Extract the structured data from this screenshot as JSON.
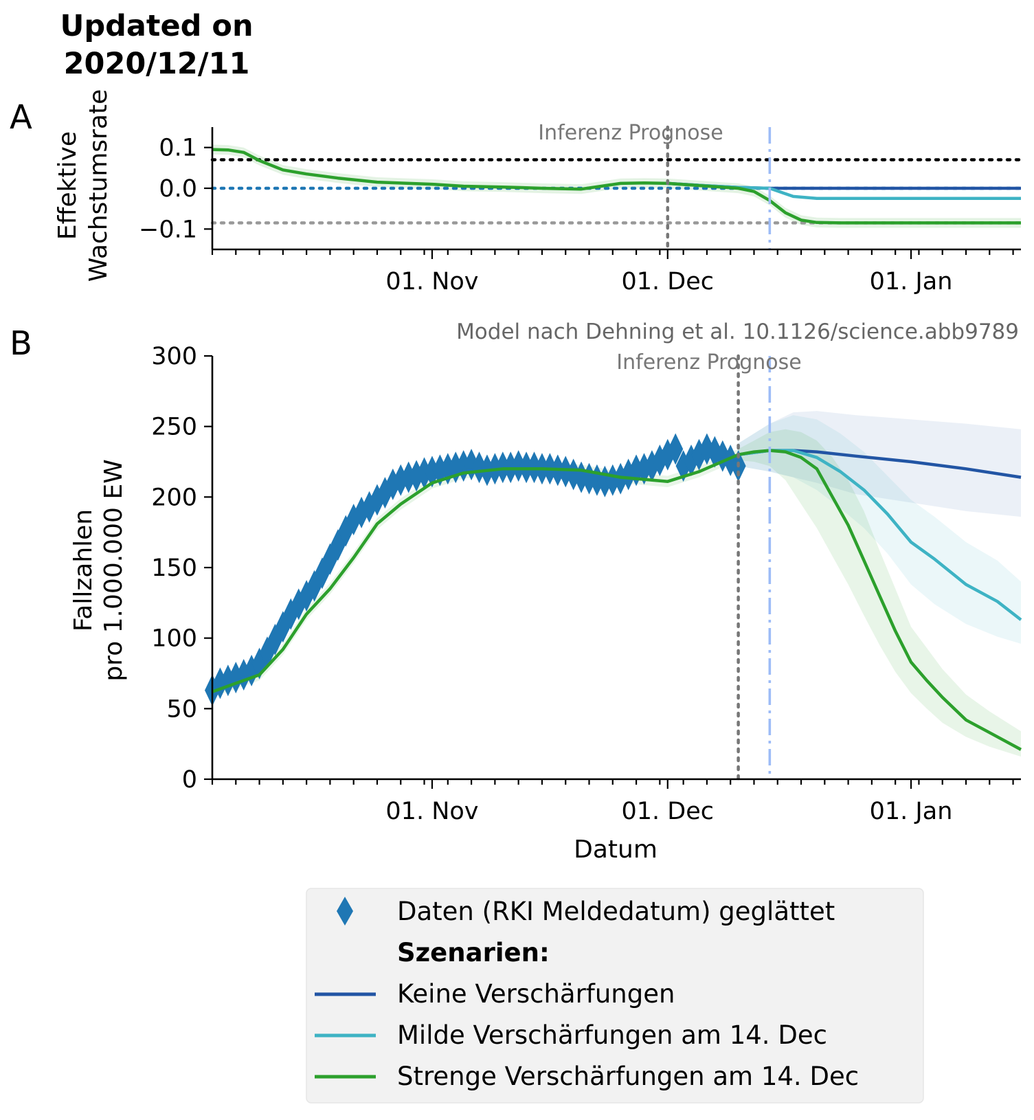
{
  "header": {
    "line1": "Updated on",
    "line2": "2020/12/11"
  },
  "panels": {
    "a": {
      "letter": "A",
      "ylabel_line1": "Effektive",
      "ylabel_line2": "Wachstumsrate",
      "region_label": "Inferenz Prognose"
    },
    "b": {
      "letter": "B",
      "ylabel_line1": "Fallzahlen",
      "ylabel_line2": "pro 1.000.000 EW",
      "xlabel": "Datum",
      "region_label": "Inferenz Prognose",
      "citation": "Model nach Dehning et al. 10.1126/science.abb9789"
    }
  },
  "legend": {
    "data_label": "Daten (RKI Meldedatum) geglättet",
    "scenarios_title": "Szenarien:",
    "items": [
      {
        "label": "Keine Verschärfungen",
        "color": "#2255a4"
      },
      {
        "label": "Milde Verschärfungen am 14. Dec",
        "color": "#3eb3c4"
      },
      {
        "label": "Strenge Verschärfungen am 14. Dec",
        "color": "#2ca02c"
      }
    ]
  },
  "chart_data": [
    {
      "panel": "A",
      "type": "line",
      "x_axis": {
        "type": "date",
        "range": [
          "2020-10-04",
          "2021-01-15"
        ],
        "tick_labels": [
          "01. Nov",
          "01. Dec",
          "01. Jan"
        ],
        "tick_dates": [
          "2020-11-01",
          "2020-12-01",
          "2021-01-01"
        ]
      },
      "ylabel": "Effektive Wachstumsrate",
      "ylim": [
        -0.15,
        0.15
      ],
      "yticks": [
        0.1,
        0.0,
        -0.1
      ],
      "ytick_labels": [
        "0.1",
        "0.0",
        "−0.1"
      ],
      "vertical_lines": [
        {
          "date": "2020-12-01",
          "style": "dotted",
          "color": "#777777",
          "meaning": "inference/forecast boundary"
        },
        {
          "date": "2020-12-14",
          "style": "dashdot",
          "color": "#9dbcf7"
        }
      ],
      "horizontal_lines": [
        {
          "y": 0.07,
          "style": "dotted",
          "color": "#000000"
        },
        {
          "y": 0.0,
          "style": "dotted",
          "color": "#1f77b4"
        },
        {
          "y": -0.085,
          "style": "dotted",
          "color": "#999999"
        }
      ],
      "series": [
        {
          "color": "#2255a4",
          "x": [
            "2020-12-01",
            "2020-12-06",
            "2020-12-10",
            "2020-12-14",
            "2021-01-15"
          ],
          "y": [
            0.012,
            0.006,
            0.002,
            0.0,
            0.0
          ]
        },
        {
          "color": "#3eb3c4",
          "x": [
            "2020-12-01",
            "2020-12-06",
            "2020-12-10",
            "2020-12-14",
            "2020-12-17",
            "2020-12-20",
            "2021-01-15"
          ],
          "y": [
            0.012,
            0.006,
            0.002,
            0.0,
            -0.02,
            -0.025,
            -0.025
          ]
        },
        {
          "color": "#2ca02c",
          "x": [
            "2020-10-04",
            "2020-10-06",
            "2020-10-08",
            "2020-10-10",
            "2020-10-13",
            "2020-10-16",
            "2020-10-20",
            "2020-10-25",
            "2020-11-01",
            "2020-11-05",
            "2020-11-10",
            "2020-11-15",
            "2020-11-20",
            "2020-11-25",
            "2020-11-28",
            "2020-12-01",
            "2020-12-04",
            "2020-12-07",
            "2020-12-10",
            "2020-12-12",
            "2020-12-14",
            "2020-12-16",
            "2020-12-18",
            "2020-12-20",
            "2020-12-23",
            "2021-01-01",
            "2021-01-15"
          ],
          "y": [
            0.095,
            0.094,
            0.088,
            0.068,
            0.045,
            0.035,
            0.025,
            0.015,
            0.01,
            0.005,
            0.003,
            0.0,
            -0.002,
            0.012,
            0.013,
            0.012,
            0.008,
            0.004,
            0.0,
            -0.008,
            -0.03,
            -0.06,
            -0.078,
            -0.084,
            -0.085,
            -0.085,
            -0.085
          ]
        }
      ]
    },
    {
      "panel": "B",
      "type": "line",
      "x_axis": {
        "type": "date",
        "range": [
          "2020-10-04",
          "2021-01-15"
        ],
        "tick_labels": [
          "01. Nov",
          "01. Dec",
          "01. Jan"
        ],
        "tick_dates": [
          "2020-11-01",
          "2020-12-01",
          "2021-01-01"
        ]
      },
      "xlabel": "Datum",
      "ylabel": "Fallzahlen pro 1.000.000 EW",
      "ylim": [
        0,
        300
      ],
      "yticks": [
        0,
        50,
        100,
        150,
        200,
        250,
        300
      ],
      "vertical_lines": [
        {
          "date": "2020-12-10",
          "style": "dotted",
          "color": "#777777",
          "meaning": "inference/forecast boundary"
        },
        {
          "date": "2020-12-14",
          "style": "dashdot",
          "color": "#9dbcf7"
        }
      ],
      "data_points": {
        "name": "Daten (RKI Meldedatum) geglättet",
        "color": "#1f77b4",
        "x": [
          "2020-10-04",
          "2020-10-05",
          "2020-10-06",
          "2020-10-07",
          "2020-10-08",
          "2020-10-09",
          "2020-10-10",
          "2020-10-11",
          "2020-10-12",
          "2020-10-13",
          "2020-10-14",
          "2020-10-15",
          "2020-10-16",
          "2020-10-17",
          "2020-10-18",
          "2020-10-19",
          "2020-10-20",
          "2020-10-21",
          "2020-10-22",
          "2020-10-23",
          "2020-10-24",
          "2020-10-25",
          "2020-10-26",
          "2020-10-27",
          "2020-10-28",
          "2020-10-29",
          "2020-10-30",
          "2020-10-31",
          "2020-11-01",
          "2020-11-02",
          "2020-11-03",
          "2020-11-04",
          "2020-11-05",
          "2020-11-06",
          "2020-11-07",
          "2020-11-08",
          "2020-11-09",
          "2020-11-10",
          "2020-11-11",
          "2020-11-12",
          "2020-11-13",
          "2020-11-14",
          "2020-11-15",
          "2020-11-16",
          "2020-11-17",
          "2020-11-18",
          "2020-11-19",
          "2020-11-20",
          "2020-11-21",
          "2020-11-22",
          "2020-11-23",
          "2020-11-24",
          "2020-11-25",
          "2020-11-26",
          "2020-11-27",
          "2020-11-28",
          "2020-11-29",
          "2020-11-30",
          "2020-12-01",
          "2020-12-02",
          "2020-12-03",
          "2020-12-04",
          "2020-12-05",
          "2020-12-06",
          "2020-12-07",
          "2020-12-08",
          "2020-12-09",
          "2020-12-10"
        ],
        "y": [
          63,
          68,
          70,
          72,
          74,
          77,
          82,
          90,
          99,
          108,
          117,
          124,
          130,
          137,
          146,
          156,
          166,
          176,
          184,
          189,
          193,
          198,
          203,
          209,
          212,
          214,
          215,
          217,
          218,
          219,
          220,
          221,
          222,
          223,
          221,
          219,
          220,
          221,
          221,
          222,
          221,
          221,
          220,
          220,
          219,
          218,
          216,
          214,
          213,
          212,
          211,
          212,
          213,
          216,
          219,
          220,
          222,
          226,
          230,
          234,
          222,
          226,
          230,
          234,
          232,
          229,
          226,
          222
        ]
      },
      "series": [
        {
          "color": "#2255a4",
          "x": [
            "2020-12-10",
            "2020-12-14",
            "2020-12-17",
            "2020-12-20",
            "2020-12-25",
            "2021-01-01",
            "2021-01-08",
            "2021-01-15"
          ],
          "y": [
            230,
            233,
            233,
            232,
            229,
            225,
            220,
            214
          ],
          "band_low": [
            222,
            218,
            214,
            210,
            202,
            196,
            190,
            186
          ],
          "band_high": [
            238,
            252,
            260,
            261,
            258,
            255,
            252,
            248
          ]
        },
        {
          "color": "#3eb3c4",
          "x": [
            "2020-12-10",
            "2020-12-14",
            "2020-12-17",
            "2020-12-20",
            "2020-12-23",
            "2020-12-26",
            "2020-12-29",
            "2021-01-01",
            "2021-01-04",
            "2021-01-08",
            "2021-01-12",
            "2021-01-15"
          ],
          "y": [
            230,
            233,
            233,
            228,
            218,
            205,
            188,
            168,
            156,
            138,
            126,
            113
          ],
          "band_low": [
            222,
            218,
            214,
            205,
            192,
            178,
            160,
            138,
            124,
            110,
            101,
            96
          ],
          "band_high": [
            238,
            252,
            258,
            255,
            245,
            232,
            215,
            198,
            186,
            168,
            155,
            140
          ]
        },
        {
          "color": "#2ca02c",
          "x": [
            "2020-10-04",
            "2020-10-07",
            "2020-10-10",
            "2020-10-13",
            "2020-10-16",
            "2020-10-19",
            "2020-10-22",
            "2020-10-25",
            "2020-10-28",
            "2020-11-01",
            "2020-11-05",
            "2020-11-10",
            "2020-11-15",
            "2020-11-20",
            "2020-11-25",
            "2020-12-01",
            "2020-12-05",
            "2020-12-10",
            "2020-12-12",
            "2020-12-14",
            "2020-12-16",
            "2020-12-18",
            "2020-12-20",
            "2020-12-22",
            "2020-12-24",
            "2020-12-26",
            "2020-12-28",
            "2020-12-30",
            "2021-01-01",
            "2021-01-03",
            "2021-01-05",
            "2021-01-08",
            "2021-01-11",
            "2021-01-15"
          ],
          "y": [
            62,
            68,
            74,
            92,
            117,
            135,
            157,
            181,
            195,
            210,
            217,
            220,
            220,
            219,
            214,
            211,
            218,
            230,
            232,
            233,
            232,
            228,
            220,
            200,
            180,
            155,
            130,
            105,
            83,
            70,
            58,
            42,
            33,
            21
          ],
          "band_low": [
            58,
            64,
            70,
            88,
            113,
            131,
            153,
            177,
            191,
            206,
            213,
            216,
            216,
            215,
            210,
            207,
            214,
            226,
            225,
            222,
            212,
            195,
            178,
            158,
            138,
            116,
            95,
            76,
            61,
            50,
            40,
            30,
            23,
            16
          ],
          "band_high": [
            66,
            72,
            78,
            96,
            121,
            139,
            161,
            185,
            199,
            214,
            221,
            224,
            224,
            223,
            218,
            215,
            222,
            234,
            240,
            246,
            248,
            246,
            240,
            228,
            212,
            190,
            162,
            135,
            108,
            93,
            78,
            60,
            48,
            34
          ]
        }
      ]
    }
  ]
}
